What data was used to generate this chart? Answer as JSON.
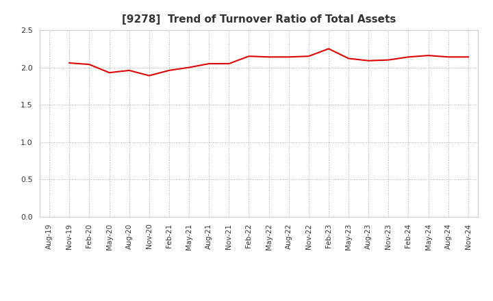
{
  "title": "[9278]  Trend of Turnover Ratio of Total Assets",
  "title_fontsize": 11,
  "title_color": "#333333",
  "line_color": "#dd0000",
  "line_width": 1.5,
  "background_color": "#ffffff",
  "plot_background_color": "#ffffff",
  "ylim": [
    0.0,
    2.5
  ],
  "yticks": [
    0.0,
    0.5,
    1.0,
    1.5,
    2.0,
    2.5
  ],
  "grid_color": "#aaaaaa",
  "x_labels": [
    "Aug-19",
    "Nov-19",
    "Feb-20",
    "May-20",
    "Aug-20",
    "Nov-20",
    "Feb-21",
    "May-21",
    "Aug-21",
    "Nov-21",
    "Feb-22",
    "May-22",
    "Aug-22",
    "Nov-22",
    "Feb-23",
    "May-23",
    "Aug-23",
    "Nov-23",
    "Feb-24",
    "May-24",
    "Aug-24",
    "Nov-24"
  ],
  "data_values": [
    null,
    2.06,
    2.04,
    1.93,
    1.96,
    1.89,
    1.96,
    2.0,
    2.05,
    2.05,
    2.15,
    2.14,
    2.14,
    2.15,
    2.25,
    2.12,
    2.09,
    2.1,
    2.14,
    2.16,
    2.14,
    2.14
  ]
}
